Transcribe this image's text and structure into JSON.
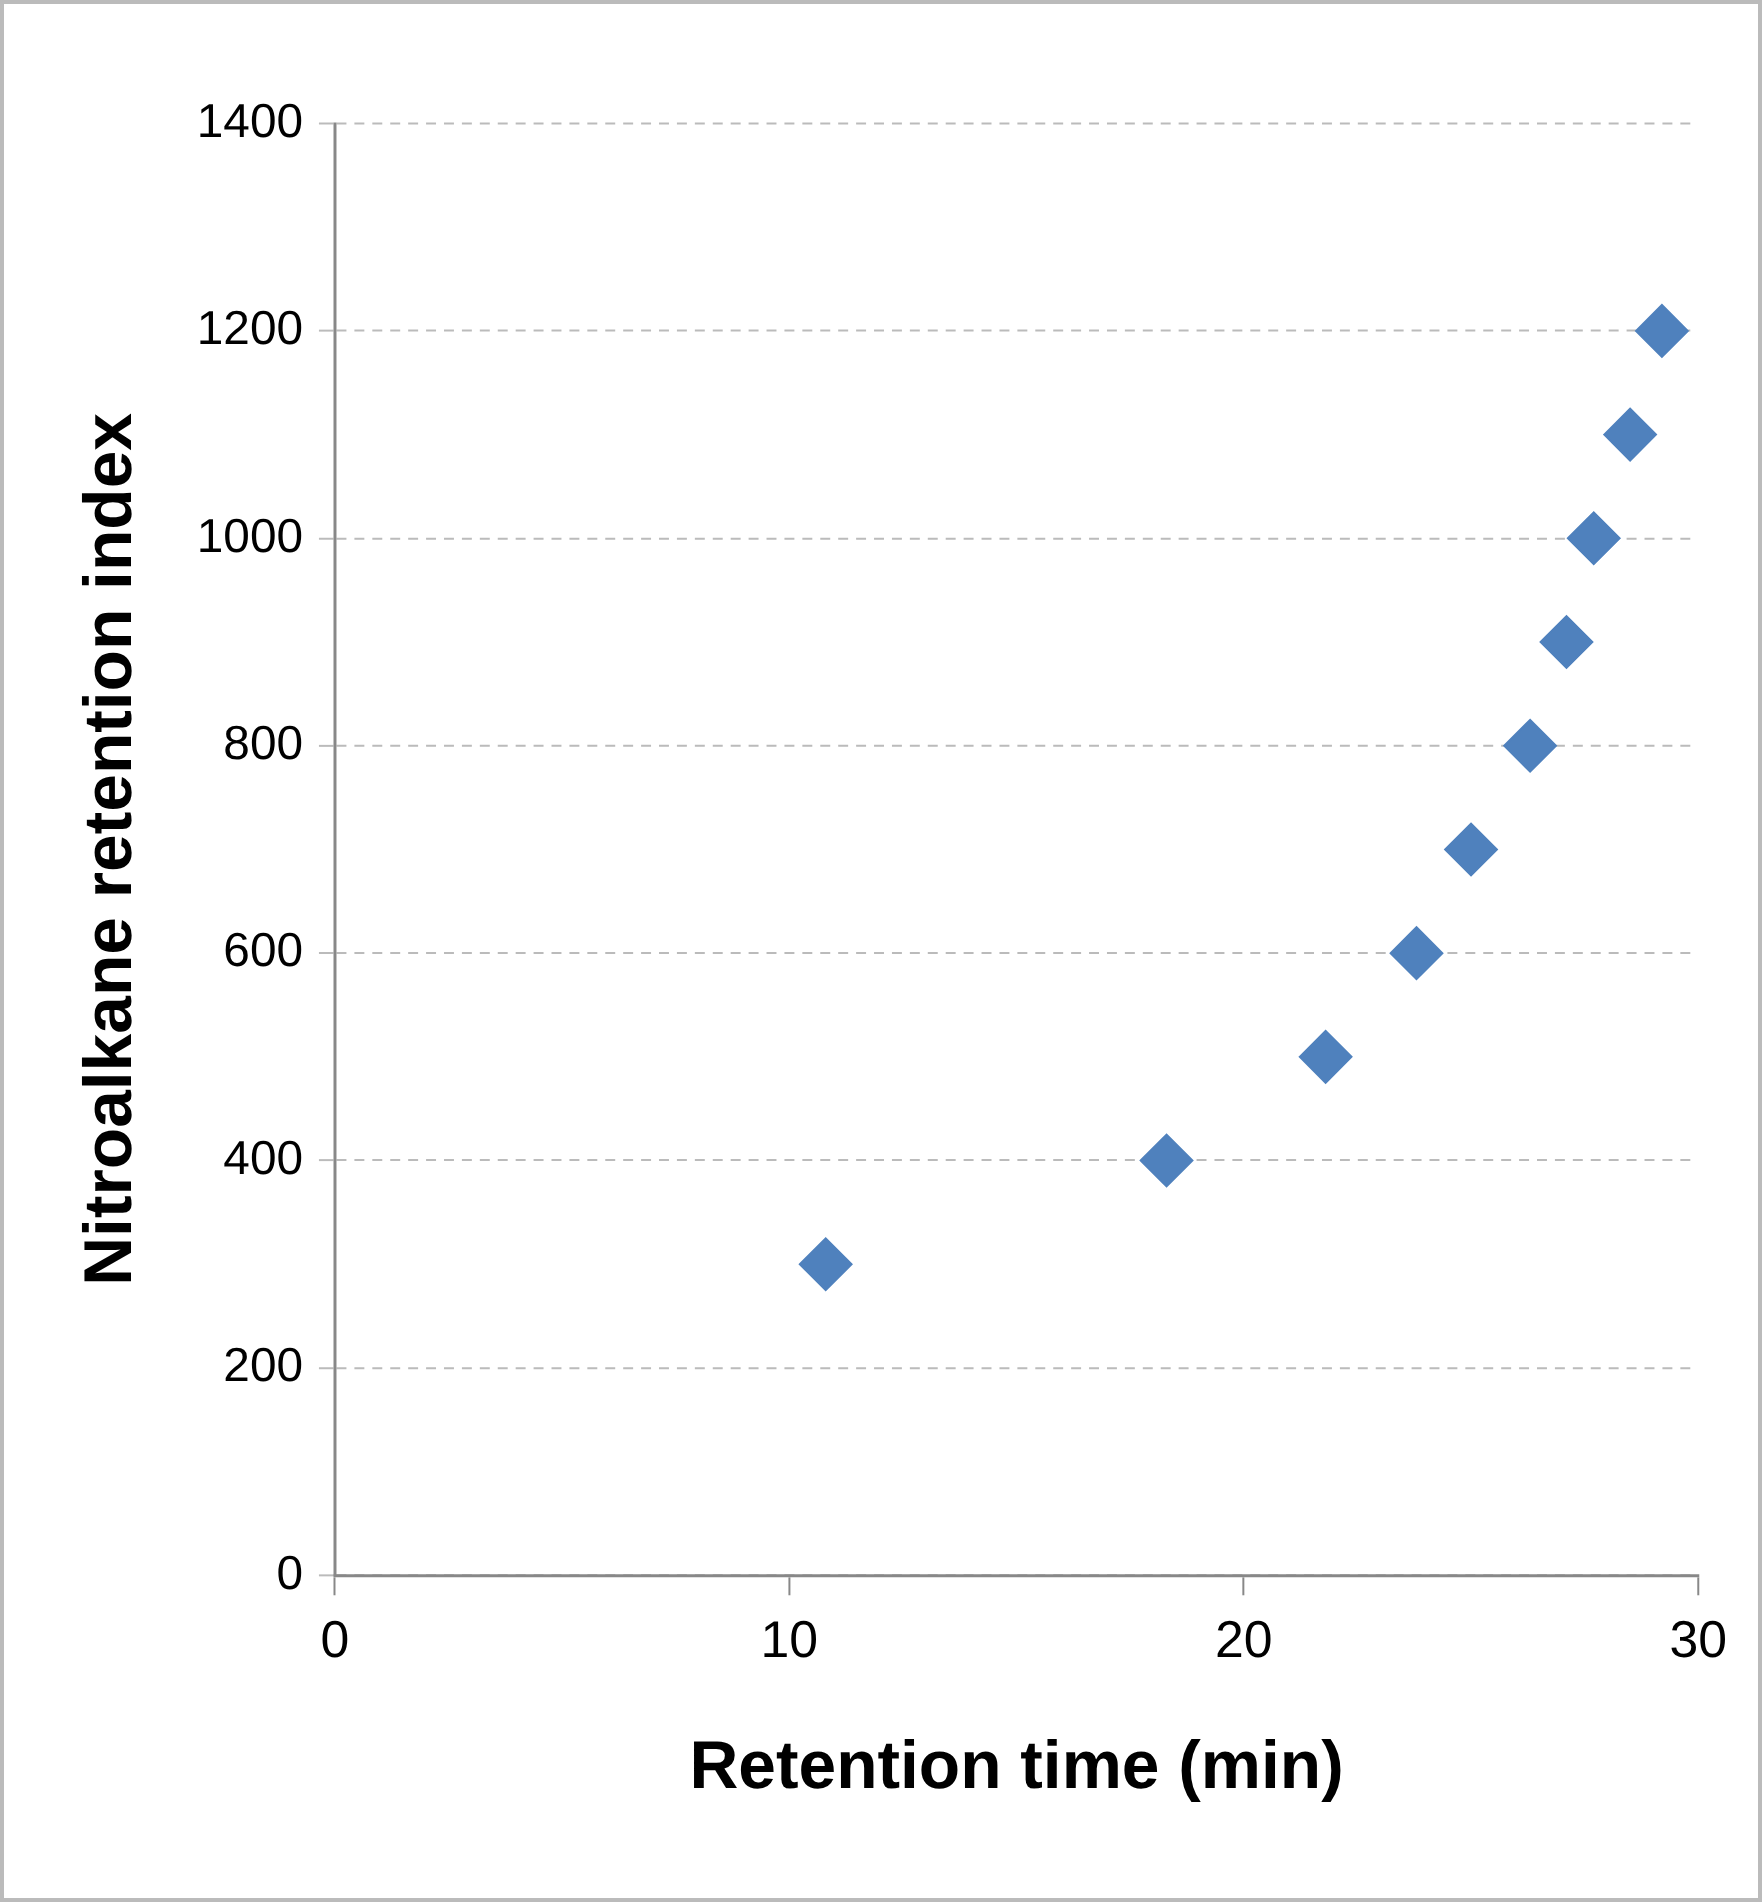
{
  "chart_data": {
    "type": "scatter",
    "xlabel": "Retention time (min)",
    "ylabel": "Nitroalkane retention index",
    "x": [
      10.8,
      18.3,
      21.8,
      23.8,
      25.0,
      26.3,
      27.1,
      27.7,
      28.5,
      29.2
    ],
    "series": [
      {
        "color": "#4f81bd",
        "values": [
          300,
          400,
          500,
          600,
          700,
          800,
          900,
          1000,
          1100,
          1200
        ]
      }
    ],
    "xlim": [
      0,
      30
    ],
    "xticks": [
      0,
      10,
      20,
      30
    ],
    "ylim": [
      0,
      1400
    ],
    "yticks": [
      0,
      200,
      400,
      600,
      800,
      1000,
      1200,
      1400
    ],
    "grid": "y",
    "legend": false,
    "marker": "diamond"
  }
}
